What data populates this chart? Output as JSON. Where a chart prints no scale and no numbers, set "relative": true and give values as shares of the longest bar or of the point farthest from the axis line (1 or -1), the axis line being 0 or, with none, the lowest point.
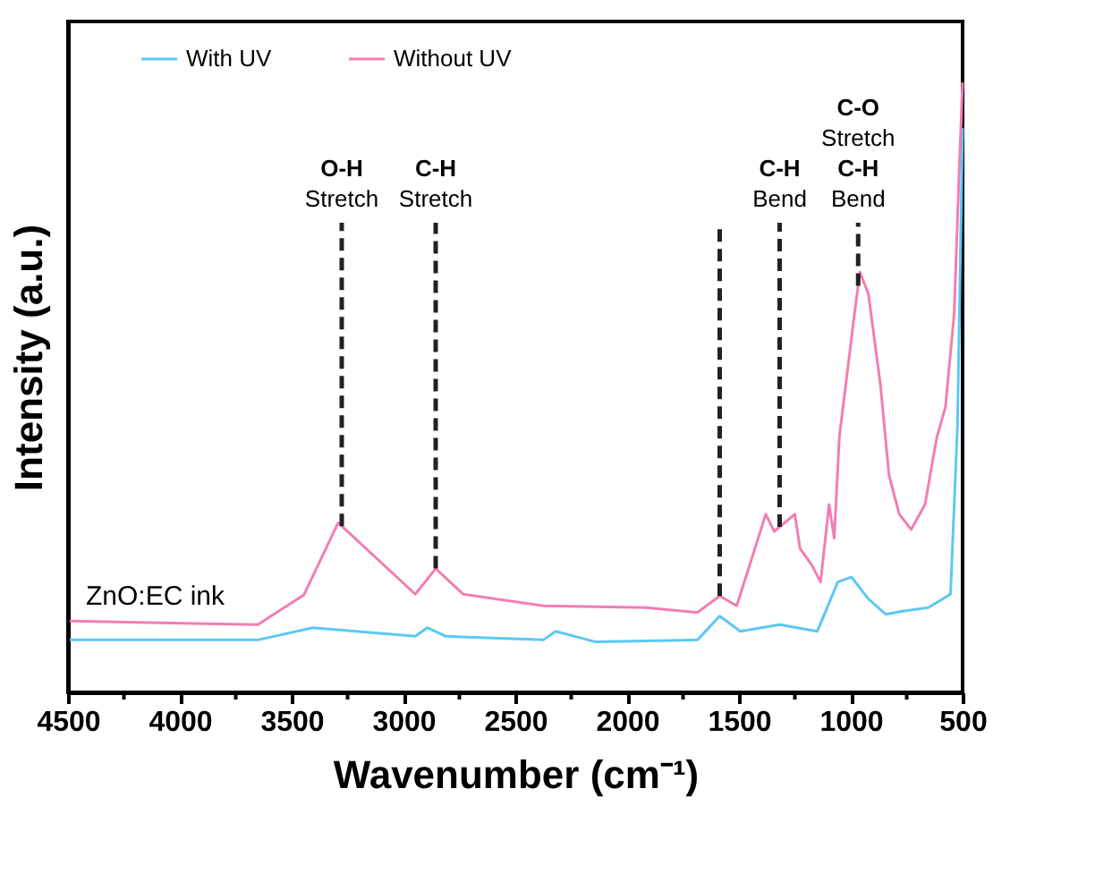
{
  "chart_data": {
    "type": "line",
    "relative": true,
    "xlabel": "Wavenumber (cm⁻¹)",
    "ylabel": "Intensity (a.u.)",
    "xlim": [
      4500,
      500
    ],
    "xticks": [
      4500,
      {
        "value": 4250,
        "label": null
      },
      4000,
      {
        "value": 3750,
        "label": null
      },
      3500,
      {
        "value": 3250,
        "label": null
      },
      3000,
      {
        "value": 2750,
        "label": null
      },
      2500,
      {
        "value": 2250,
        "label": null
      },
      2000,
      {
        "value": 1750,
        "label": null
      },
      1500,
      {
        "value": 1250,
        "label": null
      },
      1000,
      {
        "value": 750,
        "label": null
      },
      500
    ],
    "tick_labels": "x",
    "grid": false,
    "legend": "top",
    "marker": "none",
    "line_style": "solid",
    "series": [
      {
        "name": "With UV",
        "color": "#5bc8f5",
        "x": [
          4492,
          3651,
          3406,
          2947,
          2894,
          2810,
          2374,
          2320,
          2144,
          1686,
          1586,
          1494,
          1318,
          1150,
          1058,
          997,
          921,
          844,
          768,
          653,
          554,
          523,
          500
        ],
        "values": [
          0.086,
          0.086,
          0.106,
          0.092,
          0.106,
          0.092,
          0.086,
          0.1,
          0.083,
          0.086,
          0.125,
          0.1,
          0.111,
          0.1,
          0.181,
          0.189,
          0.153,
          0.128,
          0.133,
          0.139,
          0.161,
          0.436,
          0.925
        ]
      },
      {
        "name": "Without UV",
        "color": "#f27db3",
        "x": [
          4492,
          3651,
          3445,
          3292,
          2947,
          2856,
          2733,
          2374,
          1915,
          1686,
          1586,
          1510,
          1380,
          1342,
          1250,
          1227,
          1173,
          1135,
          1097,
          1074,
          1051,
          982,
          959,
          921,
          867,
          829,
          783,
          730,
          668,
          615,
          577,
          538,
          515,
          500
        ],
        "values": [
          0.117,
          0.111,
          0.16,
          0.278,
          0.161,
          0.203,
          0.161,
          0.142,
          0.139,
          0.131,
          0.158,
          0.142,
          0.292,
          0.264,
          0.292,
          0.236,
          0.208,
          0.181,
          0.308,
          0.253,
          0.419,
          0.625,
          0.689,
          0.653,
          0.503,
          0.356,
          0.292,
          0.267,
          0.308,
          0.419,
          0.467,
          0.619,
          0.856,
          1.0
        ]
      }
    ],
    "ref_lines": [
      {
        "axis": "x",
        "value": 3276,
        "label": "O-H\nStretch",
        "line_style": "dashed",
        "color": "#222222"
      },
      {
        "axis": "x",
        "value": 2856,
        "label": "C-H\nStretch",
        "line_style": "dashed",
        "color": "#222222"
      },
      {
        "axis": "x",
        "value": 1586,
        "label": null,
        "line_style": "dashed",
        "color": "#222222"
      },
      {
        "axis": "x",
        "value": 1318,
        "label": "C-H\nBend",
        "line_style": "dashed",
        "color": "#222222"
      },
      {
        "axis": "x",
        "value": 967,
        "label": "C-O\nStretch\nC-H\nBend",
        "line_style": "dashed",
        "color": "#222222"
      }
    ],
    "annotations": [
      "ZnO:EC ink"
    ]
  }
}
